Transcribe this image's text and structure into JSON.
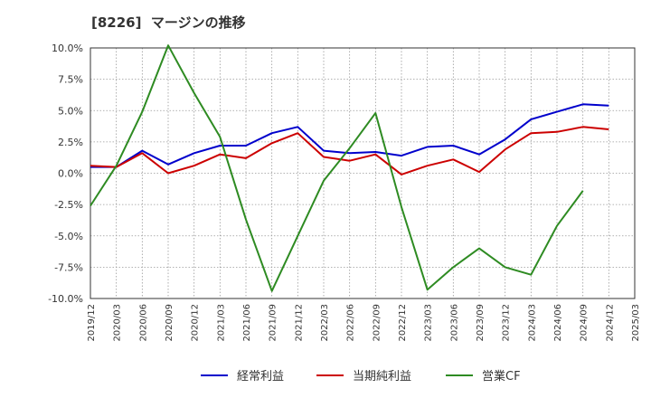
{
  "title": "[8226]  マージンの推移",
  "chart_data": {
    "type": "line",
    "title": "[8226]  マージンの推移",
    "xlabel": "",
    "ylabel": "",
    "ylim": [
      -10.0,
      10.0
    ],
    "y_ticks": [
      "10.0%",
      "7.5%",
      "5.0%",
      "2.5%",
      "0.0%",
      "-2.5%",
      "-5.0%",
      "-7.5%",
      "-10.0%"
    ],
    "y_tick_values": [
      10.0,
      7.5,
      5.0,
      2.5,
      0.0,
      -2.5,
      -5.0,
      -7.5,
      -10.0
    ],
    "x_ticks": [
      "2019/12",
      "2020/03",
      "2020/06",
      "2020/09",
      "2020/12",
      "2021/03",
      "2021/06",
      "2021/09",
      "2021/12",
      "2022/03",
      "2022/06",
      "2022/09",
      "2022/12",
      "2023/03",
      "2023/06",
      "2023/09",
      "2023/12",
      "2024/03",
      "2024/06",
      "2024/09",
      "2024/12",
      "2025/03"
    ],
    "grid": true,
    "legend_position": "bottom",
    "series": [
      {
        "name": "経常利益",
        "color": "#0000cc",
        "values": [
          0.5,
          0.5,
          1.8,
          0.7,
          1.6,
          2.2,
          2.2,
          3.2,
          3.7,
          1.8,
          1.6,
          1.7,
          1.4,
          2.1,
          2.2,
          1.5,
          2.7,
          4.3,
          4.9,
          5.5,
          5.4,
          null
        ]
      },
      {
        "name": "当期純利益",
        "color": "#cc0000",
        "values": [
          0.6,
          0.5,
          1.6,
          0.0,
          0.6,
          1.5,
          1.2,
          2.4,
          3.2,
          1.3,
          1.0,
          1.5,
          -0.1,
          0.6,
          1.1,
          0.1,
          1.9,
          3.2,
          3.3,
          3.7,
          3.5,
          null
        ]
      },
      {
        "name": "営業CF",
        "color": "#2e8b22",
        "values": [
          -2.6,
          0.6,
          4.9,
          10.2,
          6.4,
          2.9,
          -3.7,
          -9.4,
          -5.0,
          -0.6,
          2.0,
          4.8,
          -2.7,
          -9.3,
          -7.5,
          -6.0,
          -7.5,
          -8.1,
          -4.2,
          -1.4,
          null,
          null
        ]
      }
    ]
  }
}
